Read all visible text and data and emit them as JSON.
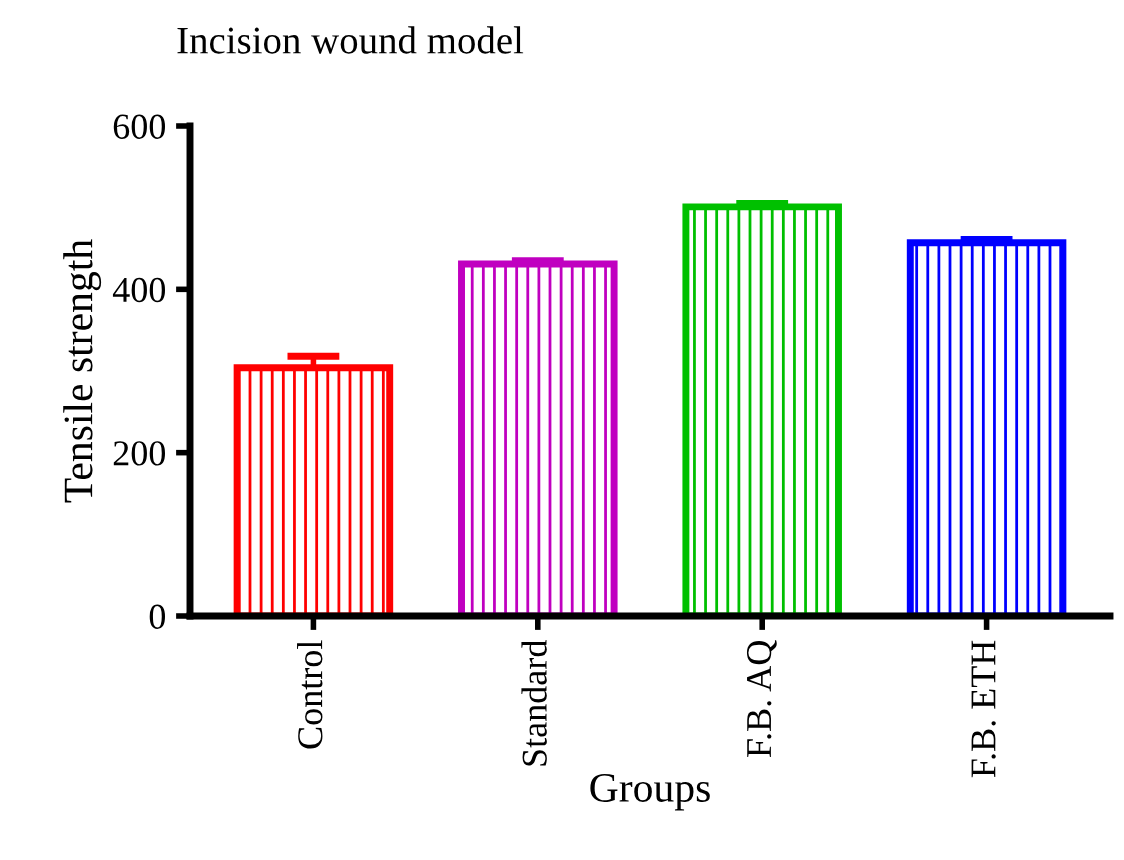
{
  "chart_data": {
    "type": "bar",
    "title": "Incision wound model",
    "xlabel": "Groups",
    "ylabel": "Tensile strength",
    "categories": [
      "Control",
      "Standard",
      "F.B. AQ",
      "F.B. ETH"
    ],
    "values": [
      304,
      431,
      501,
      457
    ],
    "errors": [
      [
        304,
        318
      ],
      [
        431,
        435
      ],
      [
        501,
        505
      ],
      [
        457,
        461
      ]
    ],
    "colors": [
      "#ff0000",
      "#c000c0",
      "#00c000",
      "#0000ff"
    ],
    "ylim": [
      0,
      600
    ],
    "yticks": [
      0,
      200,
      400,
      600
    ],
    "grid": false,
    "legend": false
  }
}
